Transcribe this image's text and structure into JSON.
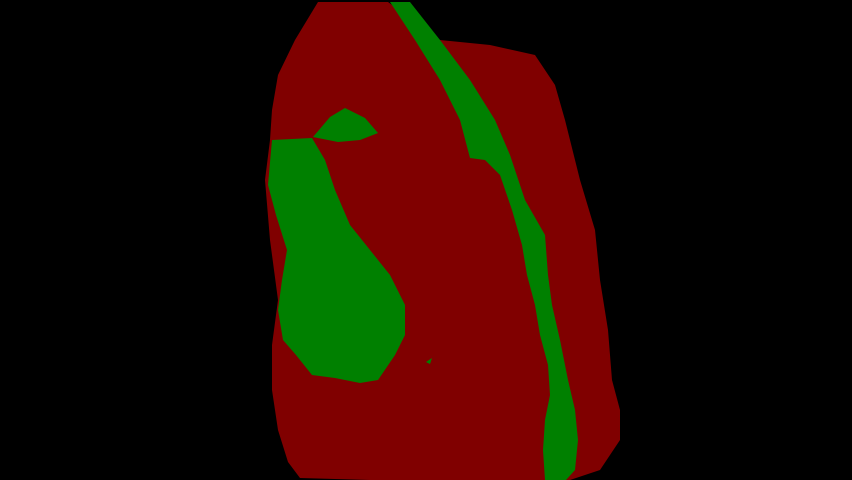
{
  "colors": {
    "background": "#000000",
    "class_primary": "#800000",
    "class_secondary": "#008000"
  },
  "regions": [
    {
      "name": "red-body-region",
      "color_key": "class_primary"
    },
    {
      "name": "green-diagonal-stripe-region",
      "color_key": "class_secondary"
    },
    {
      "name": "green-left-blob-region",
      "color_key": "class_secondary"
    },
    {
      "name": "green-small-top-region",
      "color_key": "class_secondary"
    }
  ]
}
